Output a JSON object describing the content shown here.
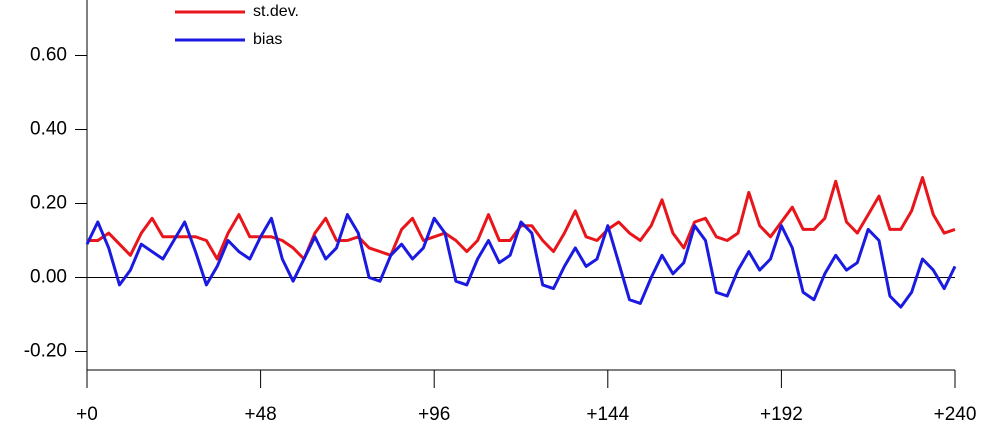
{
  "chart_data": {
    "type": "line",
    "x": [
      0,
      3,
      6,
      9,
      12,
      15,
      18,
      21,
      24,
      27,
      30,
      33,
      36,
      39,
      42,
      45,
      48,
      51,
      54,
      57,
      60,
      63,
      66,
      69,
      72,
      75,
      78,
      81,
      84,
      87,
      90,
      93,
      96,
      99,
      102,
      105,
      108,
      111,
      114,
      117,
      120,
      123,
      126,
      129,
      132,
      135,
      138,
      141,
      144,
      147,
      150,
      153,
      156,
      159,
      162,
      165,
      168,
      171,
      174,
      177,
      180,
      183,
      186,
      189,
      192,
      195,
      198,
      201,
      204,
      207,
      210,
      213,
      216,
      219,
      222,
      225,
      228,
      231,
      234,
      237,
      240
    ],
    "series": [
      {
        "name": "st.dev.",
        "color": "#e8161b",
        "values": [
          0.1,
          0.1,
          0.12,
          0.09,
          0.06,
          0.12,
          0.16,
          0.11,
          0.11,
          0.11,
          0.11,
          0.1,
          0.05,
          0.12,
          0.17,
          0.11,
          0.11,
          0.11,
          0.1,
          0.08,
          0.05,
          0.12,
          0.16,
          0.1,
          0.1,
          0.11,
          0.08,
          0.07,
          0.06,
          0.13,
          0.16,
          0.1,
          0.11,
          0.12,
          0.1,
          0.07,
          0.1,
          0.17,
          0.1,
          0.1,
          0.14,
          0.14,
          0.1,
          0.07,
          0.12,
          0.18,
          0.11,
          0.1,
          0.13,
          0.15,
          0.12,
          0.1,
          0.14,
          0.21,
          0.12,
          0.08,
          0.15,
          0.16,
          0.11,
          0.1,
          0.12,
          0.23,
          0.14,
          0.11,
          0.15,
          0.19,
          0.13,
          0.13,
          0.16,
          0.26,
          0.15,
          0.12,
          0.17,
          0.22,
          0.13,
          0.13,
          0.18,
          0.27,
          0.17,
          0.12,
          0.13
        ]
      },
      {
        "name": "bias",
        "color": "#1a1ae0",
        "values": [
          0.09,
          0.15,
          0.08,
          -0.02,
          0.02,
          0.09,
          0.07,
          0.05,
          0.1,
          0.15,
          0.07,
          -0.02,
          0.03,
          0.1,
          0.07,
          0.05,
          0.11,
          0.16,
          0.05,
          -0.01,
          0.05,
          0.11,
          0.05,
          0.08,
          0.17,
          0.12,
          0.0,
          -0.01,
          0.06,
          0.09,
          0.05,
          0.08,
          0.16,
          0.12,
          -0.01,
          -0.02,
          0.05,
          0.1,
          0.04,
          0.06,
          0.15,
          0.12,
          -0.02,
          -0.03,
          0.03,
          0.08,
          0.03,
          0.05,
          0.14,
          0.04,
          -0.06,
          -0.07,
          0.0,
          0.06,
          0.01,
          0.04,
          0.14,
          0.1,
          -0.04,
          -0.05,
          0.02,
          0.07,
          0.02,
          0.05,
          0.14,
          0.08,
          -0.04,
          -0.06,
          0.01,
          0.06,
          0.02,
          0.04,
          0.13,
          0.1,
          -0.05,
          -0.08,
          -0.04,
          0.05,
          0.02,
          -0.03,
          0.03
        ]
      }
    ],
    "xlim": [
      0,
      240
    ],
    "xticks": [
      {
        "value": 0,
        "label": "+0"
      },
      {
        "value": 48,
        "label": "+48"
      },
      {
        "value": 96,
        "label": "+96"
      },
      {
        "value": 144,
        "label": "+144"
      },
      {
        "value": 192,
        "label": "+192"
      },
      {
        "value": 240,
        "label": "+240"
      }
    ],
    "ylim": [
      -0.25,
      0.75
    ],
    "yticks": [
      {
        "value": -0.2,
        "label": "-0.20"
      },
      {
        "value": 0,
        "label": "0.00"
      },
      {
        "value": 0.2,
        "label": "0.20"
      },
      {
        "value": 0.4,
        "label": "0.40"
      },
      {
        "value": 0.6,
        "label": "0.60"
      }
    ]
  }
}
